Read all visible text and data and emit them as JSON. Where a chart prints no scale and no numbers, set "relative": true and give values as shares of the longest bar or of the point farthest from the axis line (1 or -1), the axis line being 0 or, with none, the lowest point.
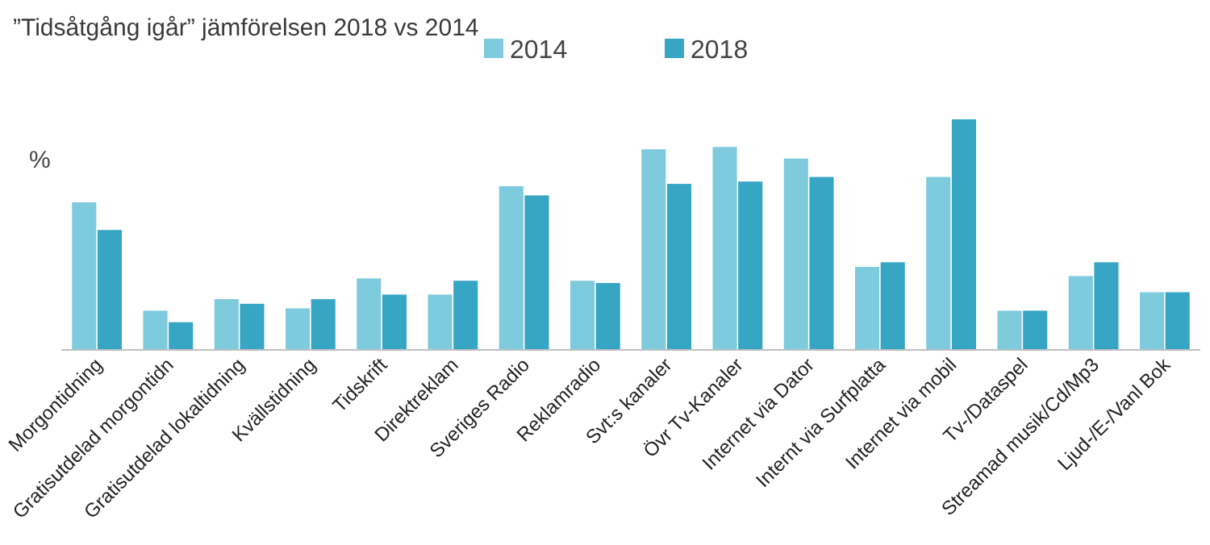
{
  "chart_data": {
    "type": "bar",
    "title": "”Tidsåtgång igår” jämförelsen 2018 vs 2014",
    "ylabel": "%",
    "relative": true,
    "legend": "top",
    "categories": [
      "Morgontidning",
      "Gratisutdelad morgontidn",
      "Gratisutdelad lokaltidning",
      "Kvällstidning",
      "Tidskrift",
      "Direktreklam",
      "Sveriges Radio",
      "Reklamradio",
      "Svt:s kanaler",
      "Övr Tv-Kanaler",
      "Internet via Dator",
      "Internt via Surfplatta",
      "Internet via mobil",
      "Tv-/Dataspel",
      "Streamad musik/Cd/Mp3",
      "Ljud-/E-/Vanl Bok"
    ],
    "series": [
      {
        "name": "2014",
        "color": "#7ecbdd",
        "values": [
          0.64,
          0.17,
          0.22,
          0.18,
          0.31,
          0.24,
          0.71,
          0.3,
          0.87,
          0.88,
          0.83,
          0.36,
          0.75,
          0.17,
          0.32,
          0.25
        ]
      },
      {
        "name": "2018",
        "color": "#37a5c4",
        "values": [
          0.52,
          0.12,
          0.2,
          0.22,
          0.24,
          0.3,
          0.67,
          0.29,
          0.72,
          0.73,
          0.75,
          0.38,
          1,
          0.17,
          0.38,
          0.25
        ]
      }
    ]
  }
}
